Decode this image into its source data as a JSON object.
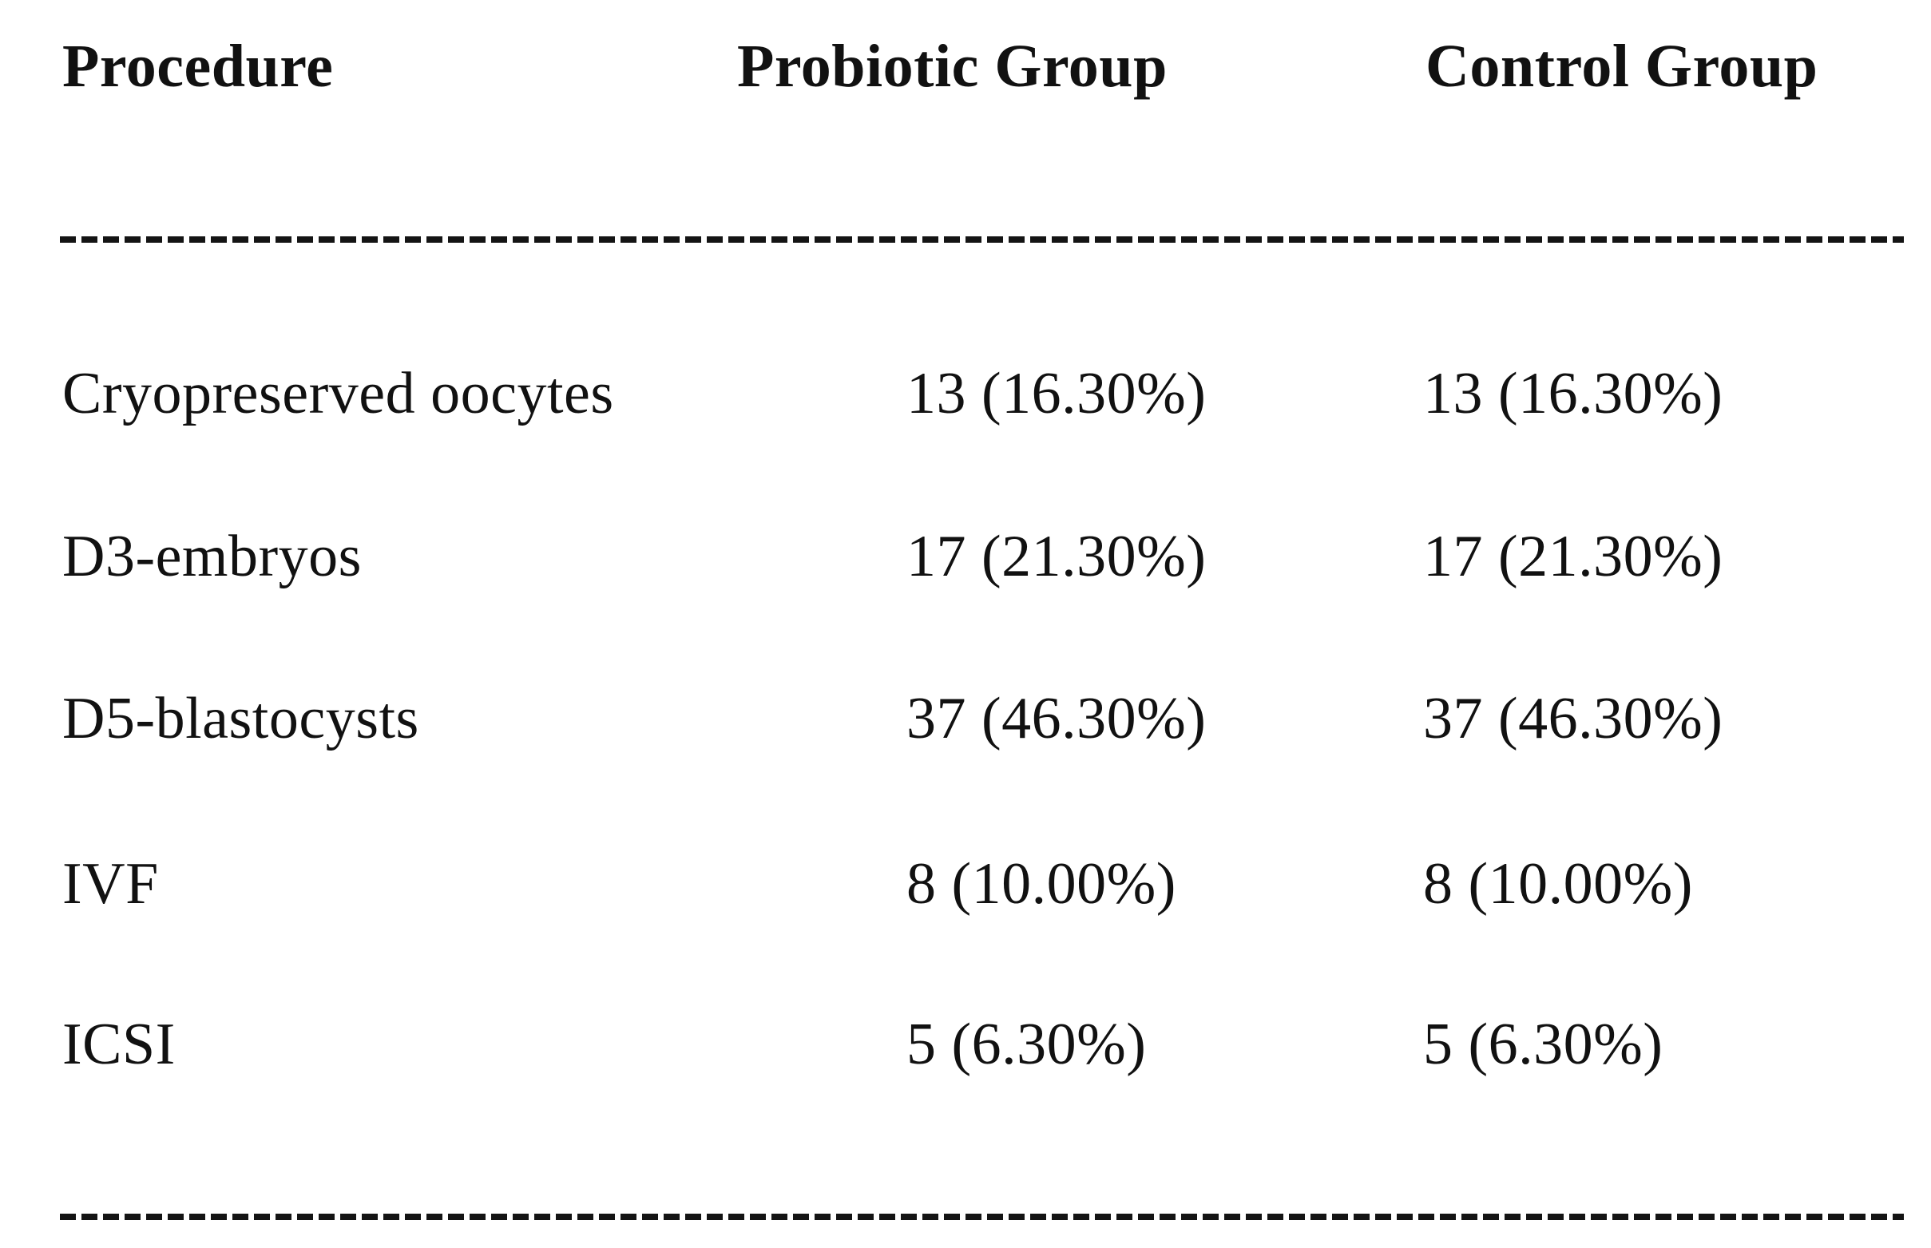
{
  "page": {
    "background": "#ffffff",
    "text_color": "#111111"
  },
  "table": {
    "headers": [
      "Procedure",
      "Probiotic Group",
      "Control Group"
    ],
    "rows": [
      [
        "Cryopreserved oocytes",
        "13 (16.30%)",
        "13 (16.30%)"
      ],
      [
        "D3-embryos",
        "17 (21.30%)",
        "17 (21.30%)"
      ],
      [
        "D5-blastocysts",
        "37 (46.30%)",
        "37 (46.30%)"
      ],
      [
        "IVF",
        "8 (10.00%)",
        "8 (10.00%)"
      ],
      [
        "ICSI",
        "5 (6.30%)",
        "5 (6.30%)"
      ]
    ]
  },
  "chart_data": {
    "type": "table",
    "columns": [
      "Procedure",
      "Probiotic Group",
      "Control Group"
    ],
    "rows": [
      {
        "procedure": "Cryopreserved oocytes",
        "probiotic_group_n": 13,
        "probiotic_group_pct": 16.3,
        "control_group_n": 13,
        "control_group_pct": 16.3
      },
      {
        "procedure": "D3-embryos",
        "probiotic_group_n": 17,
        "probiotic_group_pct": 21.3,
        "control_group_n": 17,
        "control_group_pct": 21.3
      },
      {
        "procedure": "D5-blastocysts",
        "probiotic_group_n": 37,
        "probiotic_group_pct": 46.3,
        "control_group_n": 37,
        "control_group_pct": 46.3
      },
      {
        "procedure": "IVF",
        "probiotic_group_n": 8,
        "probiotic_group_pct": 10.0,
        "control_group_n": 8,
        "control_group_pct": 10.0
      },
      {
        "procedure": "ICSI",
        "probiotic_group_n": 5,
        "probiotic_group_pct": 6.3,
        "control_group_n": 5,
        "control_group_pct": 6.3
      }
    ]
  }
}
